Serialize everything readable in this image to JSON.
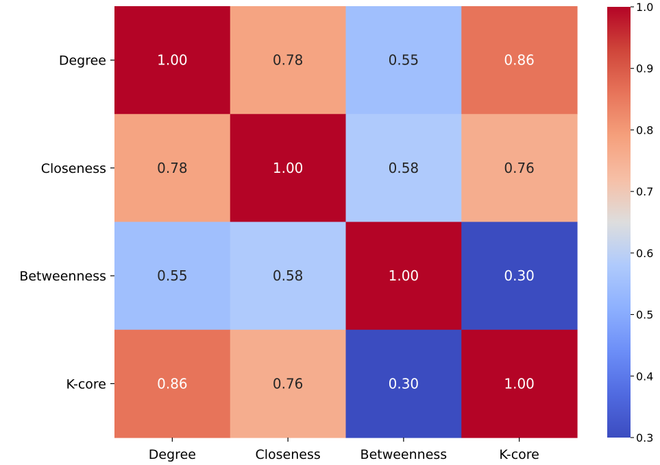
{
  "chart_data": {
    "type": "heatmap",
    "title": "",
    "xlabel": "",
    "ylabel": "",
    "rows": [
      "Degree",
      "Closeness",
      "Betweenness",
      "K-core"
    ],
    "columns": [
      "Degree",
      "Closeness",
      "Betweenness",
      "K-core"
    ],
    "values": [
      [
        1.0,
        0.78,
        0.55,
        0.86
      ],
      [
        0.78,
        1.0,
        0.58,
        0.76
      ],
      [
        0.55,
        0.58,
        1.0,
        0.3
      ],
      [
        0.86,
        0.76,
        0.3,
        1.0
      ]
    ],
    "value_format": "0.00",
    "colormap": "coolwarm",
    "colorbar": {
      "range": [
        0.3,
        1.0
      ],
      "ticks": [
        0.3,
        0.4,
        0.5,
        0.6,
        0.7,
        0.8,
        0.9,
        1.0
      ],
      "tick_labels": [
        "0.3",
        "0.4",
        "0.5",
        "0.6",
        "0.7",
        "0.8",
        "0.9",
        "1.0"
      ]
    },
    "colors": {
      "low": "#3b4cc0",
      "mid": "#dddddd",
      "high": "#b40426",
      "text_dark": "#262626",
      "text_light": "#ffffff"
    }
  }
}
